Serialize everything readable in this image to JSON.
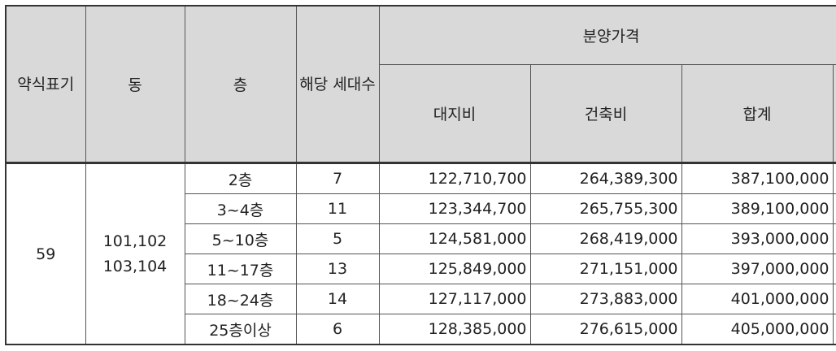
{
  "table": {
    "headers": {
      "model": "약식표기",
      "building": "동",
      "floor": "층",
      "units": "해당 세대수",
      "price_group": "분양가격",
      "land": "대지비",
      "construction": "건축비",
      "total": "합계"
    },
    "model_value": "59",
    "building_values": [
      "101,102",
      "103,104"
    ],
    "rows": [
      {
        "floor": "2층",
        "units": "7",
        "land": "122,710,700",
        "construction": "264,389,300",
        "total": "387,100,000"
      },
      {
        "floor": "3~4층",
        "units": "11",
        "land": "123,344,700",
        "construction": "265,755,300",
        "total": "389,100,000"
      },
      {
        "floor": "5~10층",
        "units": "5",
        "land": "124,581,000",
        "construction": "268,419,000",
        "total": "393,000,000"
      },
      {
        "floor": "11~17층",
        "units": "13",
        "land": "125,849,000",
        "construction": "271,151,000",
        "total": "397,000,000"
      },
      {
        "floor": "18~24층",
        "units": "14",
        "land": "127,117,000",
        "construction": "273,883,000",
        "total": "401,000,000"
      },
      {
        "floor": "25층이상",
        "units": "6",
        "land": "128,385,000",
        "construction": "276,615,000",
        "total": "405,000,000"
      }
    ]
  }
}
